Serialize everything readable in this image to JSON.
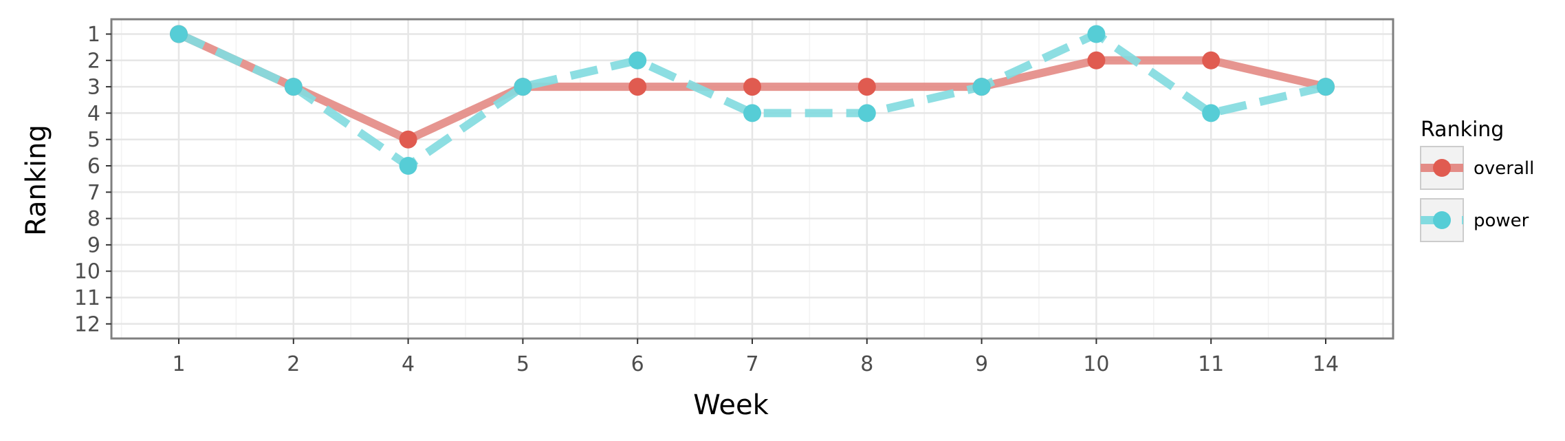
{
  "chart_data": {
    "type": "line",
    "xlabel": "Week",
    "ylabel": "Ranking",
    "categories": [
      "1",
      "2",
      "4",
      "5",
      "6",
      "7",
      "8",
      "9",
      "10",
      "11",
      "14"
    ],
    "y_ticks": [
      "1",
      "2",
      "3",
      "4",
      "5",
      "6",
      "7",
      "8",
      "9",
      "10",
      "11",
      "12"
    ],
    "ylim": [
      1,
      12
    ],
    "y_reversed": true,
    "grid": true,
    "legend": {
      "title": "Ranking",
      "position": "right"
    },
    "series": [
      {
        "name": "overall",
        "values": [
          1,
          3,
          5,
          3,
          3,
          3,
          3,
          3,
          2,
          2,
          3
        ],
        "line_color": "#e48c87",
        "point_color": "#e05b50",
        "line_style": "solid"
      },
      {
        "name": "power",
        "values": [
          1,
          3,
          6,
          3,
          2,
          4,
          4,
          3,
          1,
          4,
          3
        ],
        "line_color": "#83dbe0",
        "point_color": "#56cdd6",
        "line_style": "dashed"
      }
    ]
  }
}
